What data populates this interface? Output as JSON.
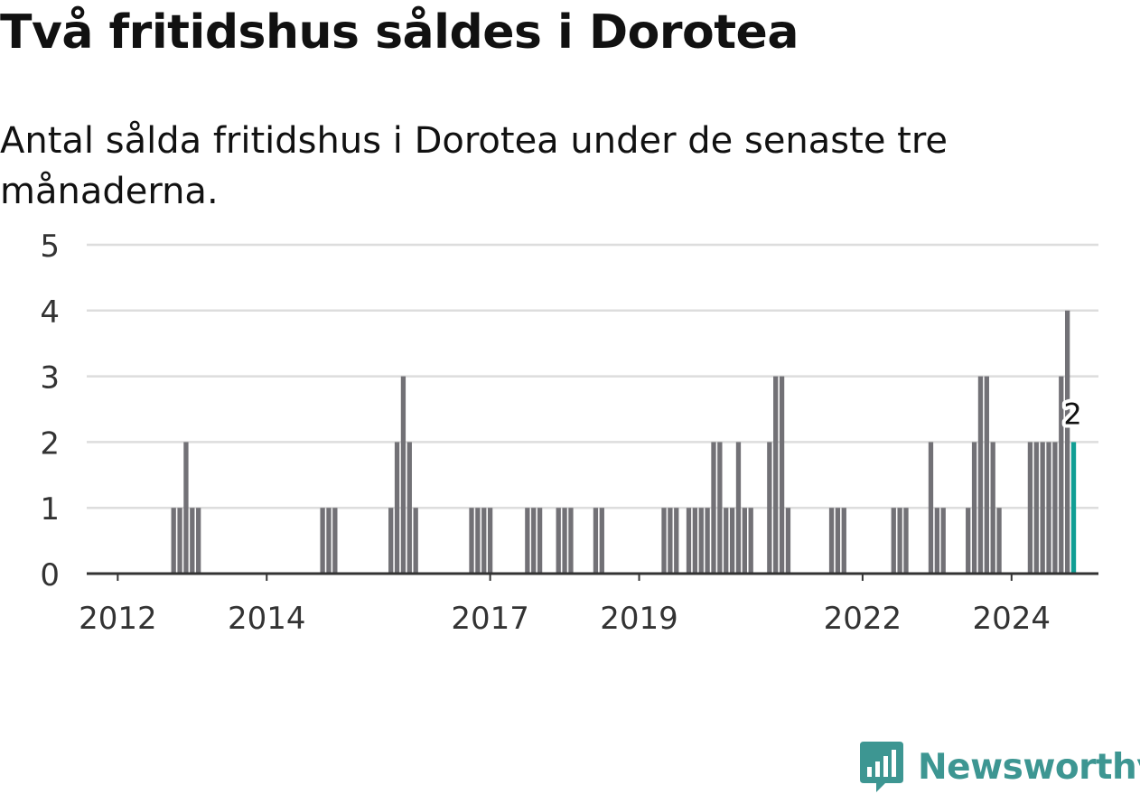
{
  "header": {
    "title": "Två fritidshus såldes i Dorotea",
    "subtitle": "Antal sålda fritidshus i Dorotea under de senaste tre månaderna."
  },
  "brand": {
    "name": "Newsworthy",
    "icon": "newsworthy-logo-icon",
    "color": "#3d9692"
  },
  "chart_data": {
    "type": "bar",
    "ylim": [
      0,
      5
    ],
    "yticks": [
      "0",
      "1",
      "2",
      "3",
      "4",
      "5"
    ],
    "xlim": [
      "2011-08",
      "2025-03"
    ],
    "xticks": [
      {
        "label": "2012",
        "date": "2012-01"
      },
      {
        "label": "2014",
        "date": "2014-01"
      },
      {
        "label": "2017",
        "date": "2017-01"
      },
      {
        "label": "2019",
        "date": "2019-01"
      },
      {
        "label": "2022",
        "date": "2022-01"
      },
      {
        "label": "2024",
        "date": "2024-01"
      }
    ],
    "colors": {
      "bar": "#727176",
      "highlight": "#109e94",
      "grid": "#dddddd",
      "axis": "#333333"
    },
    "highlight_label": "2",
    "series": [
      {
        "bars": [
          {
            "date": "2012-10",
            "value": 1
          },
          {
            "date": "2012-11",
            "value": 1
          },
          {
            "date": "2012-12",
            "value": 2
          },
          {
            "date": "2013-01",
            "value": 1
          },
          {
            "date": "2013-02",
            "value": 1
          },
          {
            "date": "2014-10",
            "value": 1
          },
          {
            "date": "2014-11",
            "value": 1
          },
          {
            "date": "2014-12",
            "value": 1
          },
          {
            "date": "2015-09",
            "value": 1
          },
          {
            "date": "2015-10",
            "value": 2
          },
          {
            "date": "2015-11",
            "value": 3
          },
          {
            "date": "2015-12",
            "value": 2
          },
          {
            "date": "2016-01",
            "value": 1
          },
          {
            "date": "2016-10",
            "value": 1
          },
          {
            "date": "2016-11",
            "value": 1
          },
          {
            "date": "2016-12",
            "value": 1
          },
          {
            "date": "2017-01",
            "value": 1
          },
          {
            "date": "2017-07",
            "value": 1
          },
          {
            "date": "2017-08",
            "value": 1
          },
          {
            "date": "2017-09",
            "value": 1
          },
          {
            "date": "2017-12",
            "value": 1
          },
          {
            "date": "2018-01",
            "value": 1
          },
          {
            "date": "2018-02",
            "value": 1
          },
          {
            "date": "2018-06",
            "value": 1
          },
          {
            "date": "2018-07",
            "value": 1
          },
          {
            "date": "2019-05",
            "value": 1
          },
          {
            "date": "2019-06",
            "value": 1
          },
          {
            "date": "2019-07",
            "value": 1
          },
          {
            "date": "2019-09",
            "value": 1
          },
          {
            "date": "2019-10",
            "value": 1
          },
          {
            "date": "2019-11",
            "value": 1
          },
          {
            "date": "2019-12",
            "value": 1
          },
          {
            "date": "2020-01",
            "value": 2
          },
          {
            "date": "2020-02",
            "value": 2
          },
          {
            "date": "2020-03",
            "value": 1
          },
          {
            "date": "2020-04",
            "value": 1
          },
          {
            "date": "2020-05",
            "value": 2
          },
          {
            "date": "2020-06",
            "value": 1
          },
          {
            "date": "2020-07",
            "value": 1
          },
          {
            "date": "2020-10",
            "value": 2
          },
          {
            "date": "2020-11",
            "value": 3
          },
          {
            "date": "2020-12",
            "value": 3
          },
          {
            "date": "2021-01",
            "value": 1
          },
          {
            "date": "2021-08",
            "value": 1
          },
          {
            "date": "2021-09",
            "value": 1
          },
          {
            "date": "2021-10",
            "value": 1
          },
          {
            "date": "2022-06",
            "value": 1
          },
          {
            "date": "2022-07",
            "value": 1
          },
          {
            "date": "2022-08",
            "value": 1
          },
          {
            "date": "2022-12",
            "value": 2
          },
          {
            "date": "2023-01",
            "value": 1
          },
          {
            "date": "2023-02",
            "value": 1
          },
          {
            "date": "2023-06",
            "value": 1
          },
          {
            "date": "2023-07",
            "value": 2
          },
          {
            "date": "2023-08",
            "value": 3
          },
          {
            "date": "2023-09",
            "value": 3
          },
          {
            "date": "2023-10",
            "value": 2
          },
          {
            "date": "2023-11",
            "value": 1
          },
          {
            "date": "2024-04",
            "value": 2
          },
          {
            "date": "2024-05",
            "value": 2
          },
          {
            "date": "2024-06",
            "value": 2
          },
          {
            "date": "2024-07",
            "value": 2
          },
          {
            "date": "2024-08",
            "value": 2
          },
          {
            "date": "2024-09",
            "value": 3
          },
          {
            "date": "2024-10",
            "value": 4
          },
          {
            "date": "2024-11",
            "value": 2,
            "highlight": true
          }
        ]
      }
    ]
  }
}
